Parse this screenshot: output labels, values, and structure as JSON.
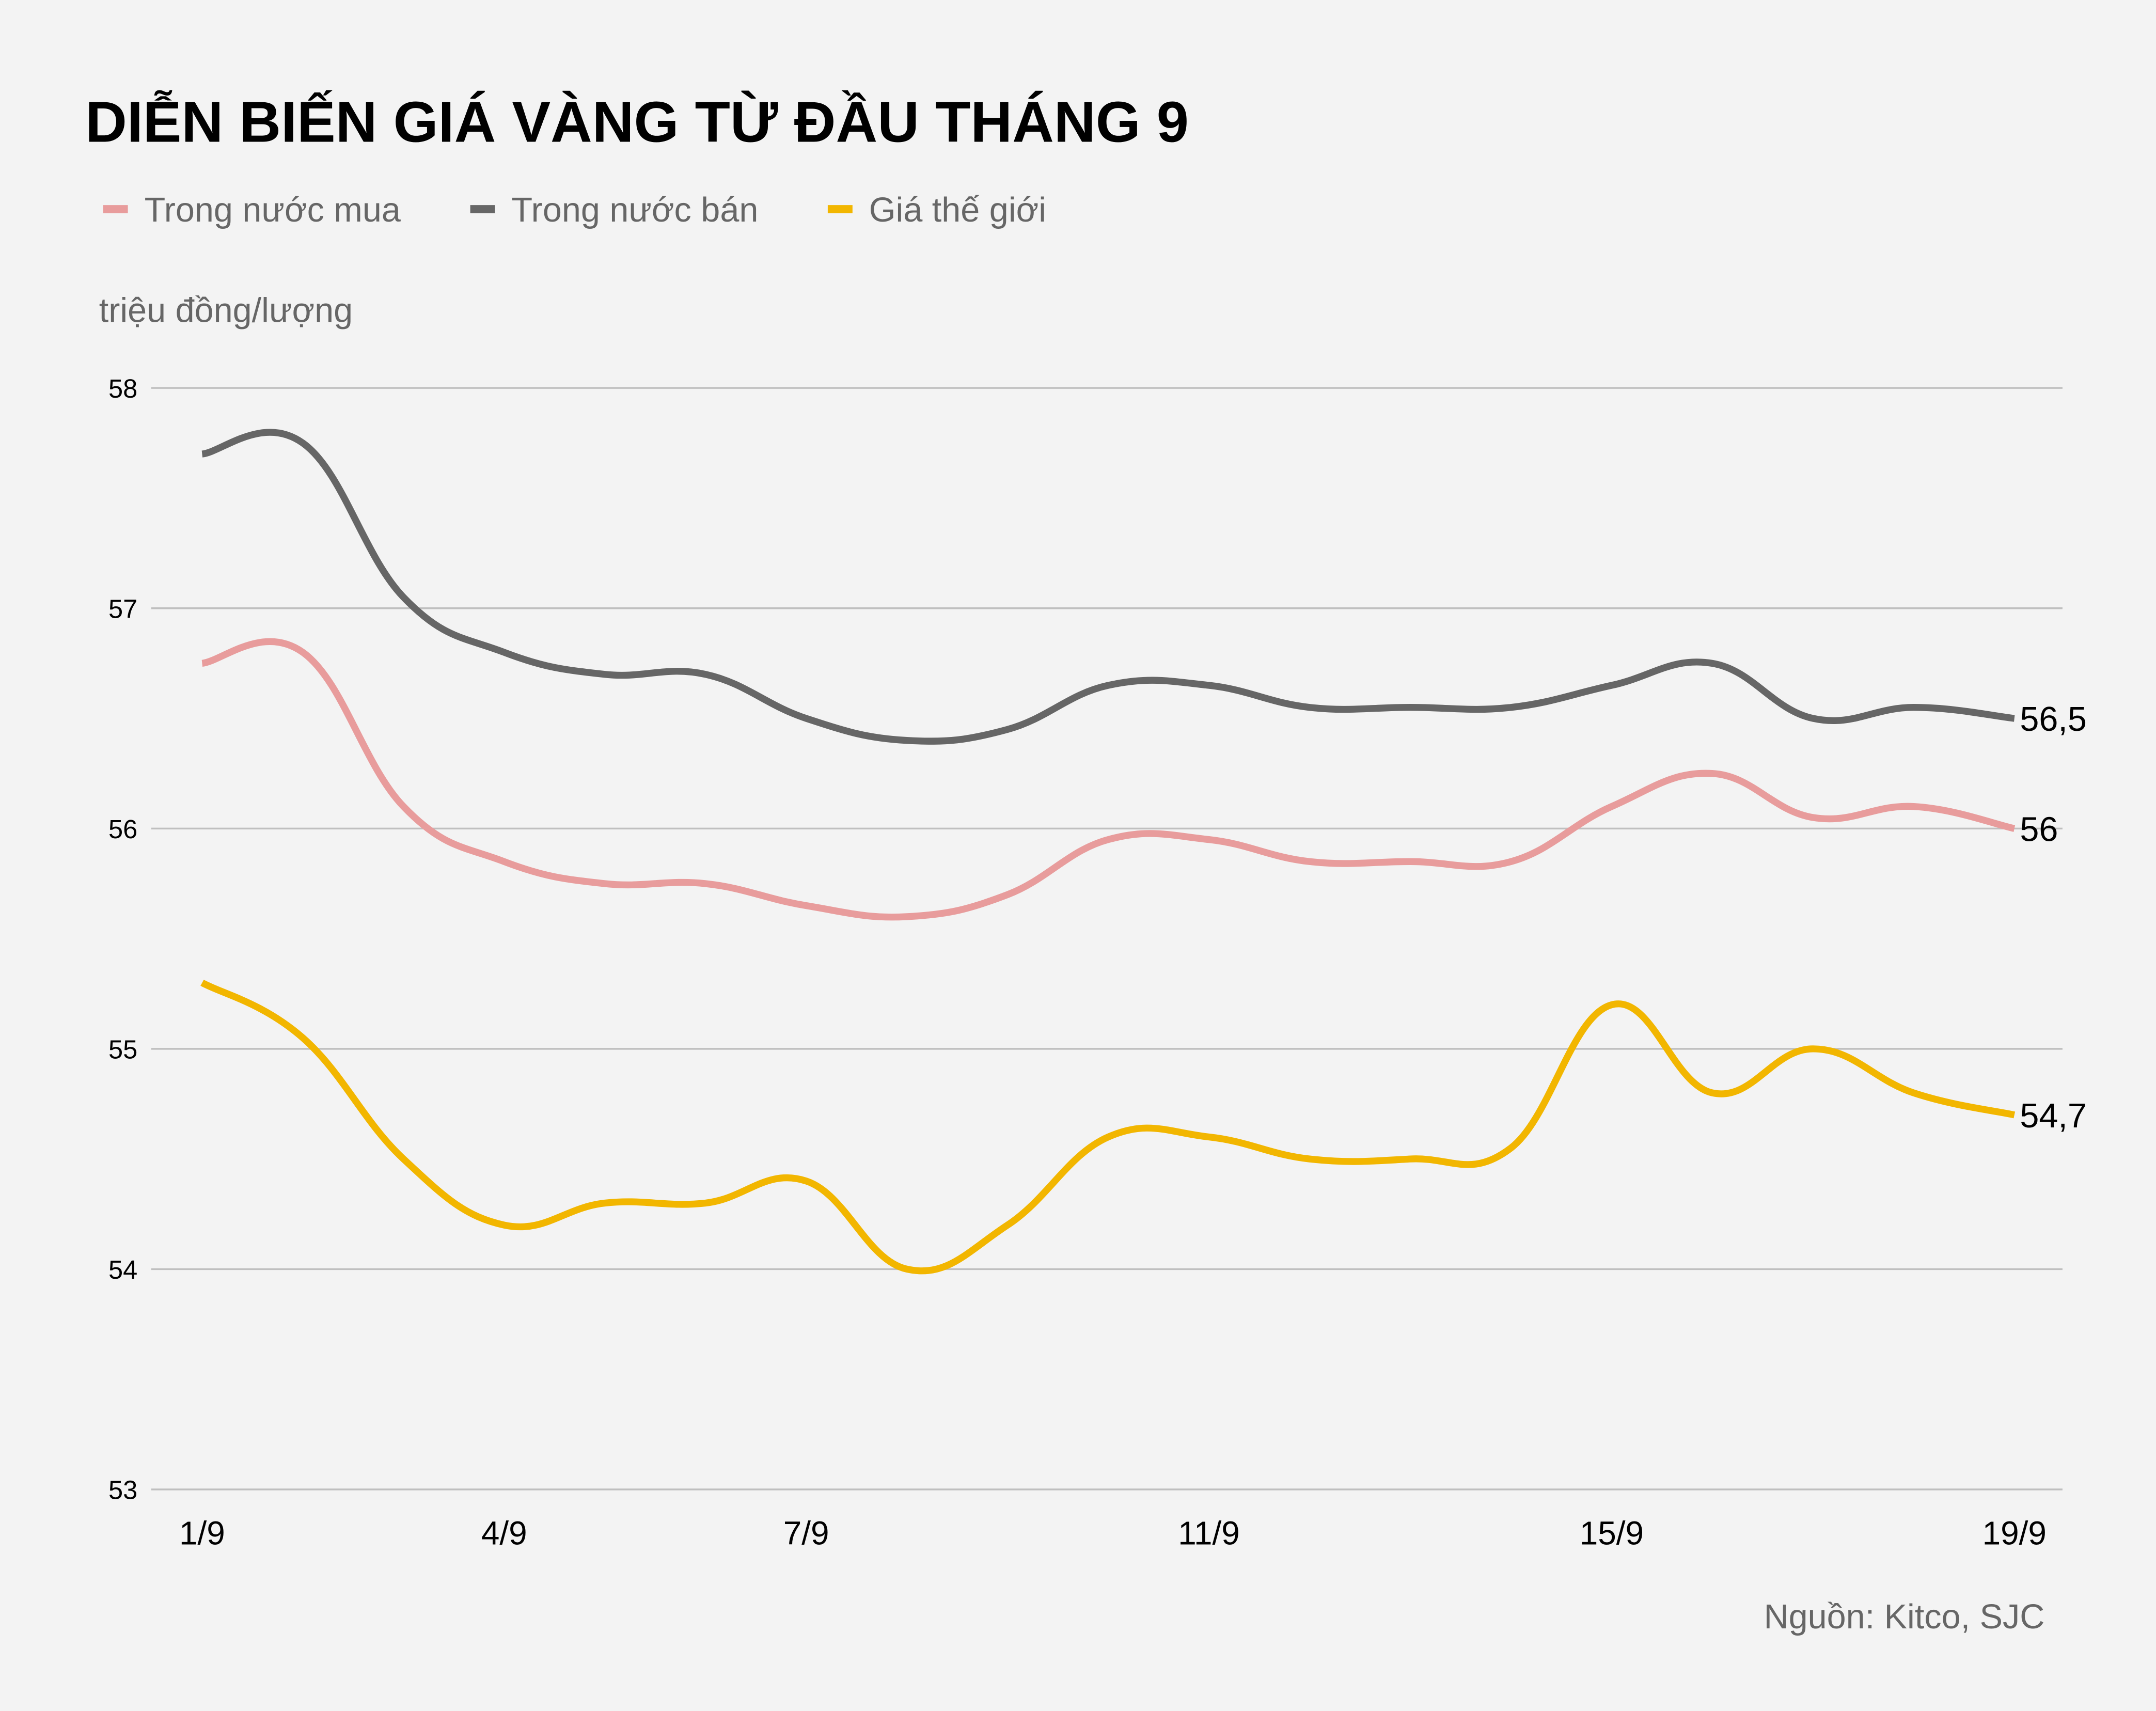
{
  "chart_data": {
    "type": "line",
    "title": "DIỄN BIẾN GIÁ VÀNG TỪ ĐẦU THÁNG 9",
    "ylabel": "triệu đồng/lượng",
    "xlabel": "",
    "source": "Nguồn: Kitco, SJC",
    "ylim": [
      53,
      58
    ],
    "yticks": [
      "53",
      "54",
      "55",
      "56",
      "57",
      "58"
    ],
    "grid": true,
    "legend_position": "top-left",
    "x": [
      "1/9",
      "2/9",
      "3/9",
      "4/9",
      "5/9",
      "6/9",
      "7/9",
      "8/9",
      "9/9",
      "10/9",
      "11/9",
      "12/9",
      "13/9",
      "14/9",
      "15/9",
      "16/9",
      "17/9",
      "18/9",
      "19/9"
    ],
    "xtick_labels": [
      {
        "index": 0,
        "label": "1/9"
      },
      {
        "index": 3,
        "label": "4/9"
      },
      {
        "index": 6,
        "label": "7/9"
      },
      {
        "index": 10,
        "label": "11/9"
      },
      {
        "index": 14,
        "label": "15/9"
      },
      {
        "index": 18,
        "label": "19/9"
      }
    ],
    "series": [
      {
        "name": "Trong nước mua",
        "color": "#e89c9c",
        "values": [
          56.75,
          56.8,
          56.1,
          55.85,
          55.75,
          55.75,
          55.65,
          55.6,
          55.7,
          55.95,
          55.95,
          55.85,
          55.85,
          55.85,
          56.1,
          56.25,
          56.05,
          56.1,
          56.0
        ],
        "end_label": "56"
      },
      {
        "name": "Trong nước bán",
        "color": "#666666",
        "values": [
          57.7,
          57.75,
          57.05,
          56.8,
          56.7,
          56.7,
          56.5,
          56.4,
          56.45,
          56.65,
          56.65,
          56.55,
          56.55,
          56.55,
          56.65,
          56.75,
          56.5,
          56.55,
          56.5
        ],
        "end_label": "56,5"
      },
      {
        "name": "Giá thế giới",
        "color": "#f2b600",
        "values": [
          55.3,
          55.05,
          54.5,
          54.2,
          54.3,
          54.3,
          54.4,
          54.0,
          54.2,
          54.6,
          54.6,
          54.5,
          54.5,
          54.55,
          55.2,
          54.8,
          55.0,
          54.8,
          54.7
        ],
        "end_label": "54,7"
      }
    ]
  }
}
